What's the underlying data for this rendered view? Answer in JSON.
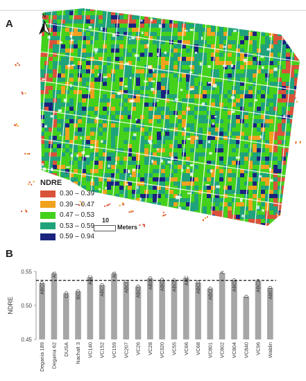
{
  "panel_a": {
    "letter": "A",
    "north_label": "N",
    "legend": {
      "title": "NDRE",
      "items": [
        {
          "label": "0.30 – 0.39",
          "color": "#d9533a"
        },
        {
          "label": "0.39 – 0.47",
          "color": "#f0a21e"
        },
        {
          "label": "0.47 – 0.53",
          "color": "#44d11c"
        },
        {
          "label": "0.53 – 0.59",
          "color": "#1fa37a"
        },
        {
          "label": "0.59 – 0.94",
          "color": "#1a237e"
        }
      ]
    },
    "scale_bar": {
      "value": "10",
      "unit": "Meters"
    }
  },
  "panel_b": {
    "letter": "B"
  },
  "chart_data": {
    "type": "bar",
    "categories": [
      "Degania 189",
      "Degania 62",
      "DUSA",
      "Nachalt 3",
      "VC140",
      "VC152",
      "VC159",
      "VC207",
      "VC26",
      "VC28",
      "VC320",
      "VC55",
      "VC66",
      "VC68",
      "VC801",
      "VC802",
      "VC804",
      "VC840",
      "VC96",
      "Waldin"
    ],
    "values": [
      0.533,
      0.547,
      0.518,
      0.521,
      0.542,
      0.53,
      0.547,
      0.535,
      0.528,
      0.54,
      0.538,
      0.537,
      0.541,
      0.534,
      0.525,
      0.548,
      0.537,
      0.513,
      0.536,
      0.526
    ],
    "letters": [
      "ABCD",
      "AB",
      "CD",
      "BCD",
      "ABC",
      "ABCD",
      "AB",
      "ABCD",
      "ABCD",
      "ABCD",
      "ABCD",
      "ABCD",
      "ABC",
      "ABCD",
      "ABCD",
      "A",
      "ABCD",
      "D",
      "ABCD",
      "ABCD"
    ],
    "reference_line": 0.537,
    "ylabel": "NDRE",
    "yticks": [
      "0.45",
      "0.50",
      "0.55"
    ],
    "ylim": [
      0.45,
      0.55
    ],
    "bar_color": "#a6a6a6",
    "grid": false
  }
}
